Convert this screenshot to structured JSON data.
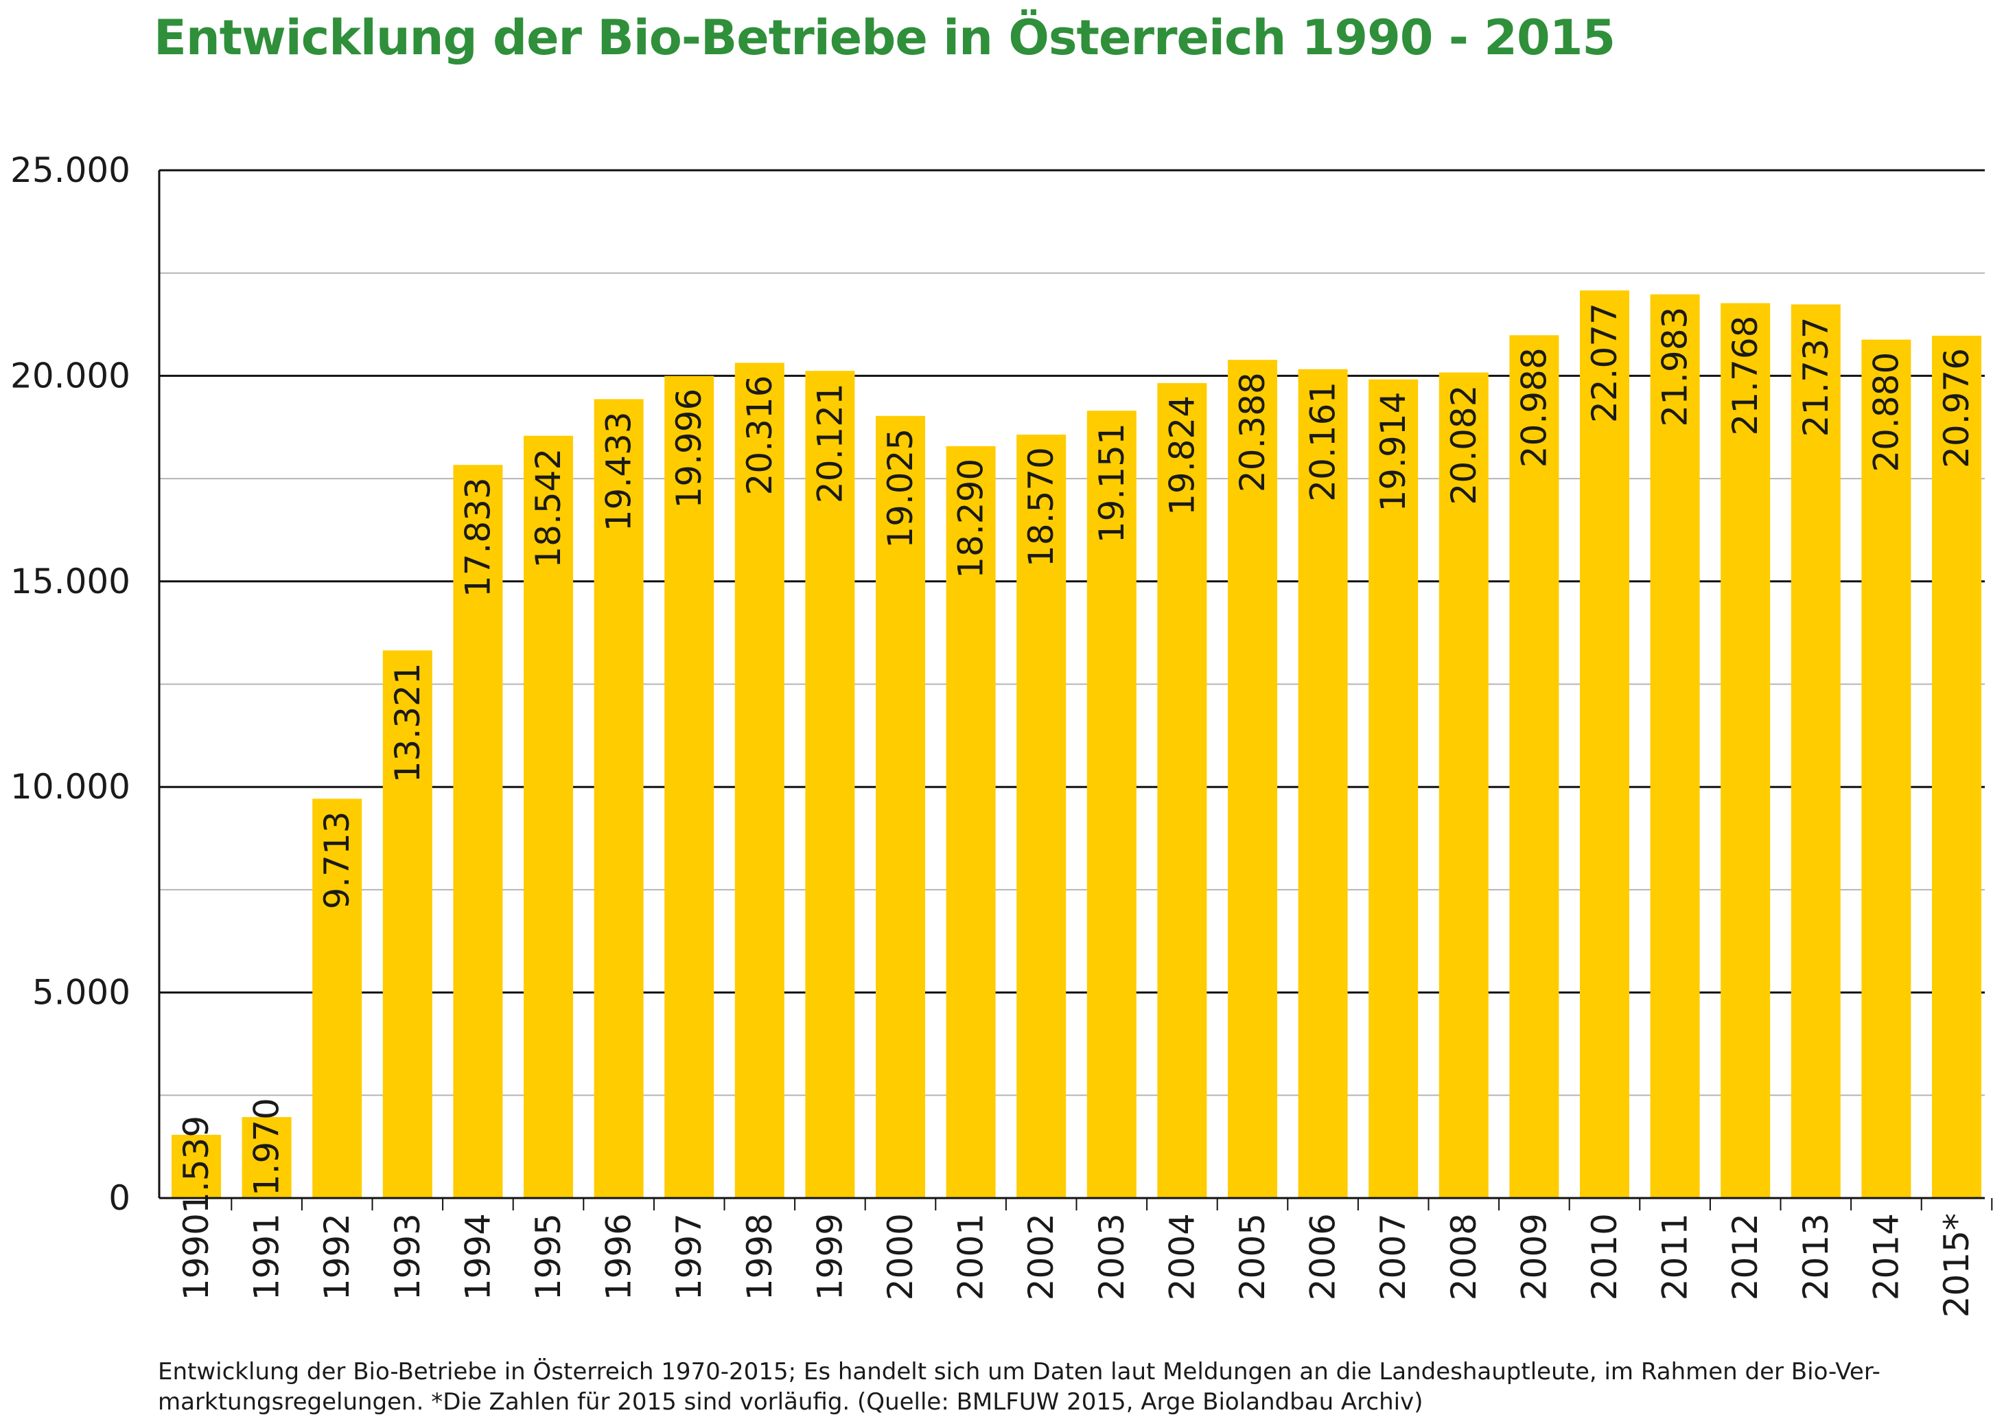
{
  "chart_data": {
    "type": "bar",
    "title": "Entwicklung der Bio-Betriebe in Österreich 1990 - 2015",
    "categories": [
      "1990",
      "1991",
      "1992",
      "1993",
      "1994",
      "1995",
      "1996",
      "1997",
      "1998",
      "1999",
      "2000",
      "2001",
      "2002",
      "2003",
      "2004",
      "2005",
      "2006",
      "2007",
      "2008",
      "2009",
      "2010",
      "2011",
      "2012",
      "2013",
      "2014",
      "2015*"
    ],
    "values": [
      1539,
      1970,
      9713,
      13321,
      17833,
      18542,
      19433,
      19996,
      20316,
      20121,
      19025,
      18290,
      18570,
      19151,
      19824,
      20388,
      20161,
      19914,
      20082,
      20988,
      22077,
      21983,
      21768,
      21737,
      20880,
      20976
    ],
    "value_labels": [
      "1.539",
      "1.970",
      "9.713",
      "13.321",
      "17.833",
      "18.542",
      "19.433",
      "19.996",
      "20.316",
      "20.121",
      "19.025",
      "18.290",
      "18.570",
      "19.151",
      "19.824",
      "20.388",
      "20.161",
      "19.914",
      "20.082",
      "20.988",
      "22.077",
      "21.983",
      "21.768",
      "21.737",
      "20.880",
      "20.976"
    ],
    "yticks": [
      0,
      5000,
      10000,
      15000,
      20000,
      25000
    ],
    "ytick_labels": [
      "0",
      "5.000",
      "10.000",
      "15.000",
      "20.000",
      "25.000"
    ],
    "ylim": [
      0,
      25000
    ],
    "xlabel": "",
    "ylabel": "",
    "grid": true,
    "legend": "none"
  },
  "footnote": {
    "line1": "Entwicklung der Bio-Betriebe in Österreich 1970-2015; Es handelt sich um Daten laut Meldungen an die Landeshauptleute, im Rahmen der Bio-Ver-",
    "line2": "marktungsregelungen. *Die Zahlen für 2015 sind vorläufig. (Quelle: BMLFUW 2015, Arge Biolandbau Archiv)"
  },
  "colors": {
    "bar": "#ffcc00",
    "title": "#2f8f3a",
    "major_grid": "#111111",
    "minor_grid": "#b5b5b5",
    "text": "#1a1a1a"
  }
}
